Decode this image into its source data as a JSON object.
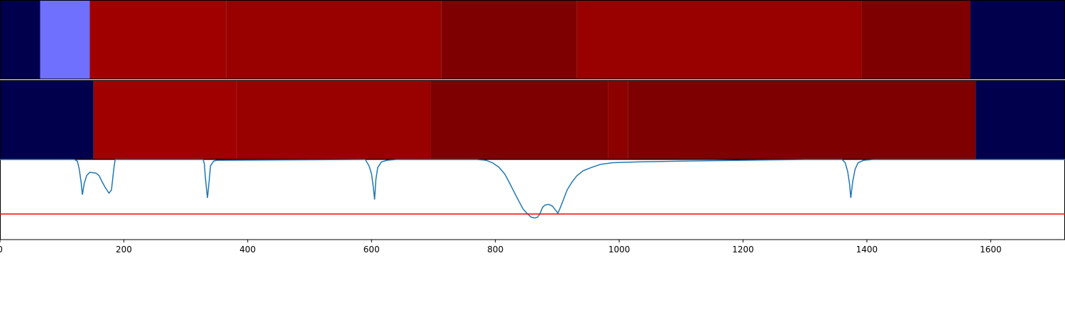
{
  "chart_data": {
    "type": "area",
    "xlim": [
      0,
      1720
    ],
    "grid": false,
    "xticks": [
      "0",
      "200",
      "400",
      "600",
      "800",
      "1000",
      "1200",
      "1400",
      "1600"
    ],
    "xtick_values": [
      0,
      200,
      400,
      600,
      800,
      1000,
      1200,
      1400,
      1600
    ],
    "segment_tracks": [
      {
        "segments": [
          {
            "start": 0,
            "end": 65,
            "color": "#00004c"
          },
          {
            "start": 65,
            "end": 145,
            "color": "#7070ff"
          },
          {
            "start": 145,
            "end": 365,
            "color": "#a00000"
          },
          {
            "start": 365,
            "end": 713,
            "color": "#990000"
          },
          {
            "start": 713,
            "end": 932,
            "color": "#7f0000"
          },
          {
            "start": 932,
            "end": 1392,
            "color": "#990000"
          },
          {
            "start": 1392,
            "end": 1567,
            "color": "#7f0000"
          },
          {
            "start": 1567,
            "end": 1720,
            "color": "#00004c"
          }
        ]
      },
      {
        "segments": [
          {
            "start": 0,
            "end": 151,
            "color": "#00004c"
          },
          {
            "start": 151,
            "end": 382,
            "color": "#a00000"
          },
          {
            "start": 382,
            "end": 696,
            "color": "#990000"
          },
          {
            "start": 696,
            "end": 982,
            "color": "#7f0000"
          },
          {
            "start": 982,
            "end": 1014,
            "color": "#8c0000"
          },
          {
            "start": 1014,
            "end": 1576,
            "color": "#7f0000"
          },
          {
            "start": 1576,
            "end": 1720,
            "color": "#00004c"
          }
        ]
      }
    ],
    "line_series": {
      "color": "#1f77b4",
      "ylim": [
        0,
        1
      ],
      "threshold": {
        "value": 0.32,
        "color": "#ff0000"
      },
      "points": [
        [
          0,
          1.0
        ],
        [
          120,
          1.0
        ],
        [
          125,
          0.98
        ],
        [
          128,
          0.88
        ],
        [
          131,
          0.72
        ],
        [
          133,
          0.56
        ],
        [
          136,
          0.7
        ],
        [
          140,
          0.8
        ],
        [
          145,
          0.84
        ],
        [
          155,
          0.83
        ],
        [
          160,
          0.8
        ],
        [
          165,
          0.72
        ],
        [
          170,
          0.65
        ],
        [
          176,
          0.58
        ],
        [
          180,
          0.62
        ],
        [
          184,
          0.9
        ],
        [
          186,
          1.0
        ],
        [
          328,
          1.0
        ],
        [
          330,
          0.95
        ],
        [
          332,
          0.75
        ],
        [
          335,
          0.52
        ],
        [
          338,
          0.75
        ],
        [
          340,
          0.92
        ],
        [
          345,
          0.98
        ],
        [
          350,
          0.99
        ],
        [
          590,
          1.0
        ],
        [
          596,
          0.92
        ],
        [
          600,
          0.82
        ],
        [
          603,
          0.65
        ],
        [
          605,
          0.5
        ],
        [
          607,
          0.75
        ],
        [
          610,
          0.9
        ],
        [
          616,
          0.97
        ],
        [
          625,
          0.99
        ],
        [
          640,
          1.0
        ],
        [
          770,
          1.0
        ],
        [
          785,
          0.99
        ],
        [
          795,
          0.96
        ],
        [
          805,
          0.91
        ],
        [
          815,
          0.82
        ],
        [
          822,
          0.72
        ],
        [
          830,
          0.6
        ],
        [
          838,
          0.48
        ],
        [
          845,
          0.38
        ],
        [
          852,
          0.32
        ],
        [
          858,
          0.28
        ],
        [
          864,
          0.27
        ],
        [
          868,
          0.28
        ],
        [
          872,
          0.32
        ],
        [
          876,
          0.4
        ],
        [
          880,
          0.43
        ],
        [
          886,
          0.44
        ],
        [
          892,
          0.42
        ],
        [
          897,
          0.37
        ],
        [
          901,
          0.33
        ],
        [
          905,
          0.4
        ],
        [
          910,
          0.5
        ],
        [
          916,
          0.62
        ],
        [
          924,
          0.72
        ],
        [
          932,
          0.8
        ],
        [
          942,
          0.86
        ],
        [
          955,
          0.9
        ],
        [
          970,
          0.94
        ],
        [
          990,
          0.96
        ],
        [
          1030,
          0.97
        ],
        [
          1100,
          0.98
        ],
        [
          1200,
          0.99
        ],
        [
          1300,
          1.0
        ],
        [
          1360,
          1.0
        ],
        [
          1365,
          0.96
        ],
        [
          1369,
          0.85
        ],
        [
          1372,
          0.7
        ],
        [
          1374,
          0.52
        ],
        [
          1377,
          0.72
        ],
        [
          1381,
          0.88
        ],
        [
          1386,
          0.96
        ],
        [
          1395,
          0.99
        ],
        [
          1410,
          1.0
        ],
        [
          1720,
          1.0
        ]
      ]
    }
  }
}
